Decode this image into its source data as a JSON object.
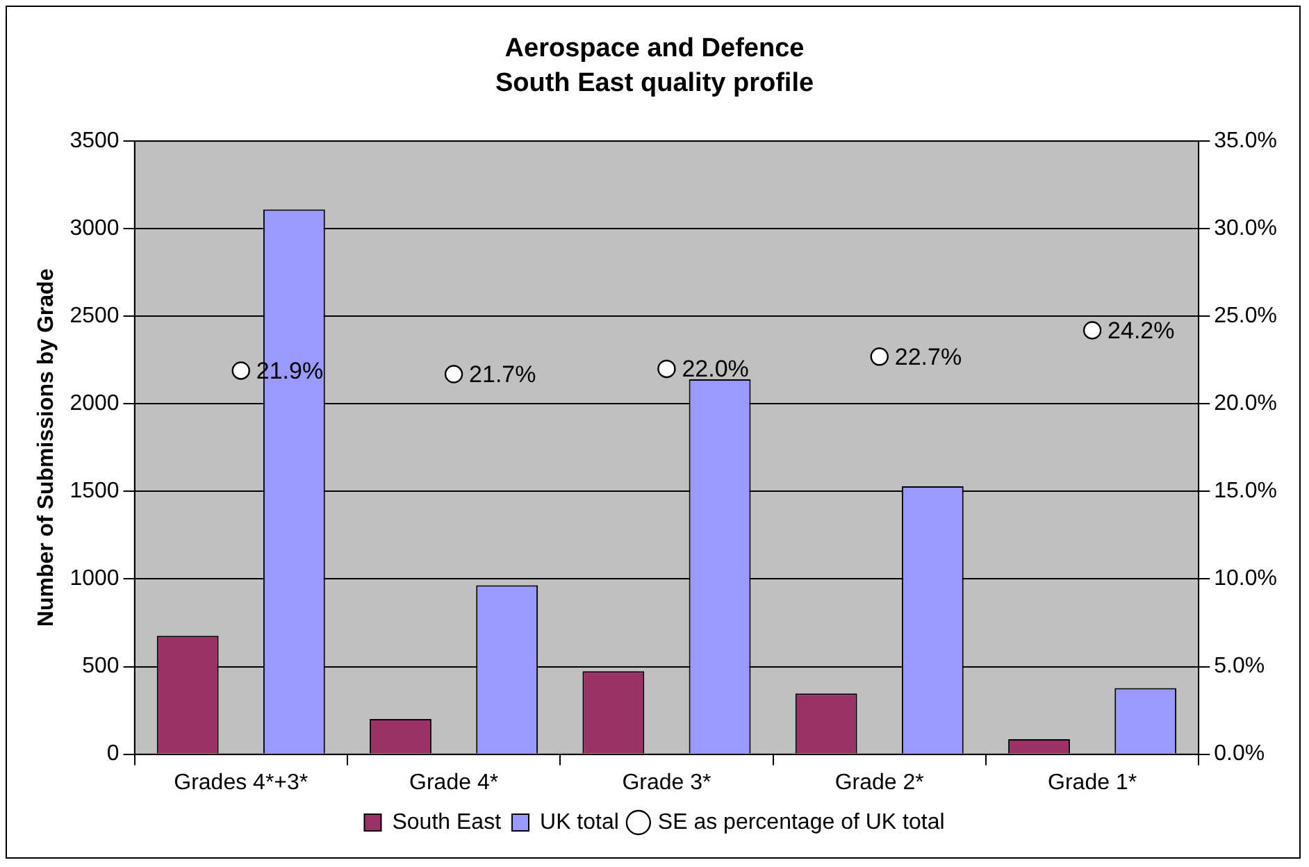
{
  "chart_data": {
    "type": "bar",
    "title": "Aerospace and Defence",
    "subtitle": "South East quality profile",
    "ylabel": "Number of Submissions by Grade",
    "categories": [
      "Grades 4*+3*",
      "Grade 4*",
      "Grade 3*",
      "Grade 2*",
      "Grade 1*"
    ],
    "series": [
      {
        "name": "South East",
        "color": "#993366",
        "values": [
          676,
          201,
          473,
          346,
          86
        ]
      },
      {
        "name": "UK total",
        "color": "#9999ff",
        "values": [
          3110,
          964,
          2140,
          1529,
          377
        ]
      },
      {
        "name": "SE as percentage of UK total",
        "type": "scatter",
        "axis": "y2",
        "color": "#ffffff",
        "marker": "circle",
        "values": [
          21.9,
          21.7,
          22.0,
          22.7,
          24.2
        ],
        "value_labels": [
          "21.9%",
          "21.7%",
          "22.0%",
          "22.7%",
          "24.2%"
        ]
      }
    ],
    "ylim": [
      0,
      3500
    ],
    "yticks": [
      0,
      500,
      1000,
      1500,
      2000,
      2500,
      3000,
      3500
    ],
    "y2lim": [
      0,
      35
    ],
    "y2ticks": [
      {
        "value": 0,
        "label": "0.0%"
      },
      {
        "value": 5,
        "label": "5.0%"
      },
      {
        "value": 10,
        "label": "10.0%"
      },
      {
        "value": 15,
        "label": "15.0%"
      },
      {
        "value": 20,
        "label": "20.0%"
      },
      {
        "value": 25,
        "label": "25.0%"
      },
      {
        "value": 30,
        "label": "30.0%"
      },
      {
        "value": 35,
        "label": "35.0%"
      }
    ],
    "grid": "y",
    "legend": "bottom"
  }
}
